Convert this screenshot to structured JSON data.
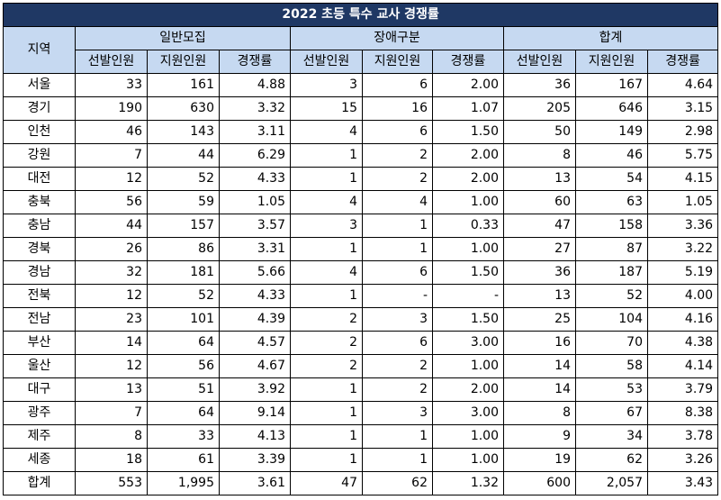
{
  "title": "2022 초등 특수 교사 경쟁률",
  "header": {
    "region": "지역",
    "groups": [
      "일반모집",
      "장애구분",
      "합계"
    ],
    "sub": [
      "선발인원",
      "지원인원",
      "경쟁률"
    ]
  },
  "rows": [
    [
      "서울",
      "33",
      "161",
      "4.88",
      "3",
      "6",
      "2.00",
      "36",
      "167",
      "4.64"
    ],
    [
      "경기",
      "190",
      "630",
      "3.32",
      "15",
      "16",
      "1.07",
      "205",
      "646",
      "3.15"
    ],
    [
      "인천",
      "46",
      "143",
      "3.11",
      "4",
      "6",
      "1.50",
      "50",
      "149",
      "2.98"
    ],
    [
      "강원",
      "7",
      "44",
      "6.29",
      "1",
      "2",
      "2.00",
      "8",
      "46",
      "5.75"
    ],
    [
      "대전",
      "12",
      "52",
      "4.33",
      "1",
      "2",
      "2.00",
      "13",
      "54",
      "4.15"
    ],
    [
      "충북",
      "56",
      "59",
      "1.05",
      "4",
      "4",
      "1.00",
      "60",
      "63",
      "1.05"
    ],
    [
      "충남",
      "44",
      "157",
      "3.57",
      "3",
      "1",
      "0.33",
      "47",
      "158",
      "3.36"
    ],
    [
      "경북",
      "26",
      "86",
      "3.31",
      "1",
      "1",
      "1.00",
      "27",
      "87",
      "3.22"
    ],
    [
      "경남",
      "32",
      "181",
      "5.66",
      "4",
      "6",
      "1.50",
      "36",
      "187",
      "5.19"
    ],
    [
      "전북",
      "12",
      "52",
      "4.33",
      "1",
      "-",
      "-",
      "13",
      "52",
      "4.00"
    ],
    [
      "전남",
      "23",
      "101",
      "4.39",
      "2",
      "3",
      "1.50",
      "25",
      "104",
      "4.16"
    ],
    [
      "부산",
      "14",
      "64",
      "4.57",
      "2",
      "6",
      "3.00",
      "16",
      "70",
      "4.38"
    ],
    [
      "울산",
      "12",
      "56",
      "4.67",
      "2",
      "2",
      "1.00",
      "14",
      "58",
      "4.14"
    ],
    [
      "대구",
      "13",
      "51",
      "3.92",
      "1",
      "2",
      "2.00",
      "14",
      "53",
      "3.79"
    ],
    [
      "광주",
      "7",
      "64",
      "9.14",
      "1",
      "3",
      "3.00",
      "8",
      "67",
      "8.38"
    ],
    [
      "제주",
      "8",
      "33",
      "4.13",
      "1",
      "1",
      "1.00",
      "9",
      "34",
      "3.78"
    ],
    [
      "세종",
      "18",
      "61",
      "3.39",
      "1",
      "1",
      "1.00",
      "19",
      "62",
      "3.26"
    ],
    [
      "합계",
      "553",
      "1,995",
      "3.61",
      "47",
      "62",
      "1.32",
      "600",
      "2,057",
      "3.43"
    ]
  ],
  "colors": {
    "title_bg": "#1f3864",
    "header_bg": "#c6d9f1"
  }
}
